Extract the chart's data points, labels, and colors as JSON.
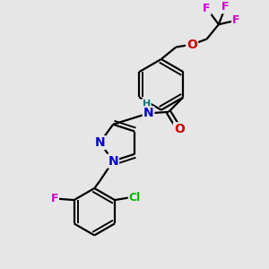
{
  "background_color": "#e6e6e6",
  "atom_colors": {
    "C": "#000000",
    "N": "#0000cc",
    "O": "#cc0000",
    "F": "#cc00cc",
    "Cl": "#00bb00",
    "H": "#007777"
  },
  "bond_color": "#000000",
  "font_size": 9,
  "bond_width": 1.6
}
